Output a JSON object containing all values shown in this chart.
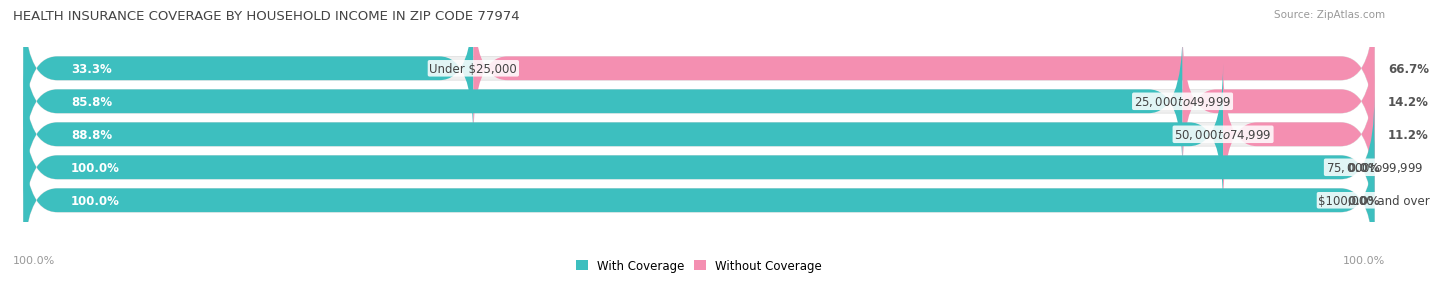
{
  "title": "HEALTH INSURANCE COVERAGE BY HOUSEHOLD INCOME IN ZIP CODE 77974",
  "source": "Source: ZipAtlas.com",
  "categories": [
    "Under $25,000",
    "$25,000 to $49,999",
    "$50,000 to $74,999",
    "$75,000 to $99,999",
    "$100,000 and over"
  ],
  "with_coverage": [
    33.3,
    85.8,
    88.8,
    100.0,
    100.0
  ],
  "without_coverage": [
    66.7,
    14.2,
    11.2,
    0.0,
    0.0
  ],
  "color_with": "#3dbfbf",
  "color_without": "#f48fb1",
  "bg_bar": "#efefef",
  "bg_figure": "#ffffff",
  "bar_height": 0.72,
  "bar_gap": 0.28,
  "legend_labels": [
    "With Coverage",
    "Without Coverage"
  ],
  "title_fontsize": 9.5,
  "label_fontsize": 8.5,
  "category_fontsize": 8.5,
  "source_fontsize": 7.5,
  "rounding": 2.5
}
